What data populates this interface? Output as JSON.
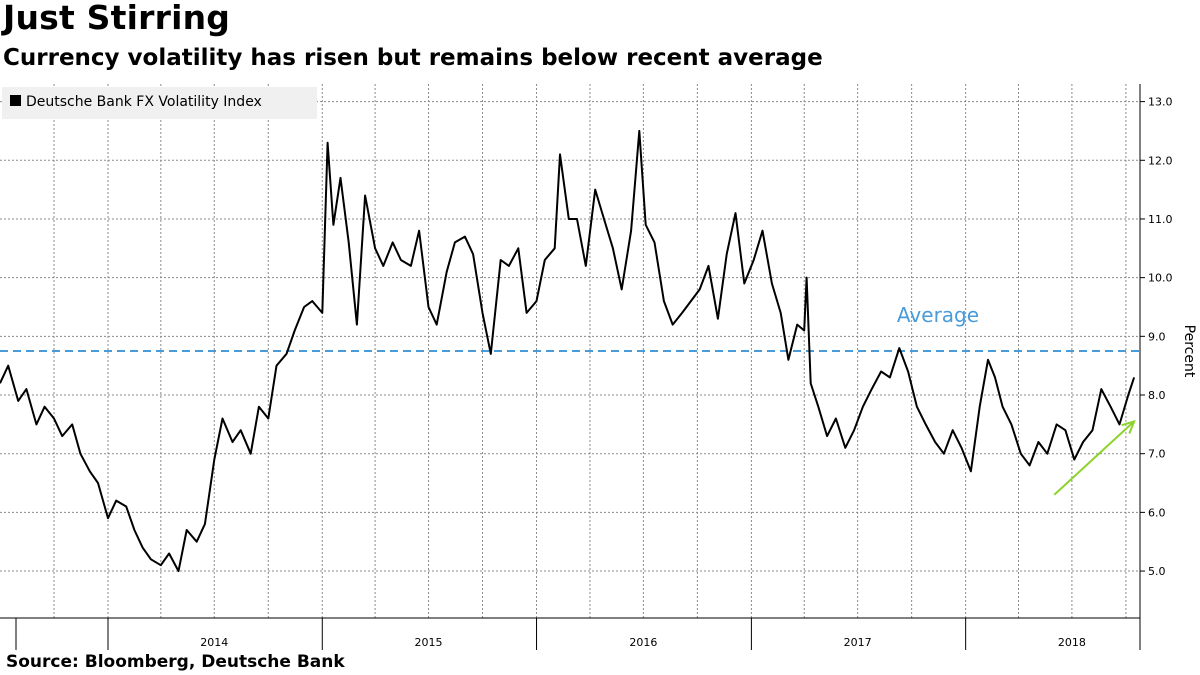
{
  "chart_data": {
    "type": "line",
    "title": "Just Stirring",
    "subtitle": "Currency volatility has risen but remains below recent average",
    "source": "Source: Bloomberg, Deutsche Bank",
    "ylabel": "Percent",
    "ylim": [
      4.2,
      13.3
    ],
    "yticks": [
      5.0,
      6.0,
      7.0,
      8.0,
      9.0,
      10.0,
      11.0,
      12.0,
      13.0
    ],
    "ytick_labels": [
      "5.0",
      "6.0",
      "7.0",
      "8.0",
      "9.0",
      "10.0",
      "11.0",
      "12.0",
      "13.0"
    ],
    "xlim": [
      "2013-07-01",
      "2018-10-25"
    ],
    "x_year_labels": [
      {
        "label": "2014",
        "x": "2014-07-01"
      },
      {
        "label": "2015",
        "x": "2015-07-01"
      },
      {
        "label": "2016",
        "x": "2016-07-01"
      },
      {
        "label": "2017",
        "x": "2017-07-01"
      },
      {
        "label": "2018",
        "x": "2018-07-01"
      }
    ],
    "grid": true,
    "legend_position": "top-left",
    "series": [
      {
        "name": "Deutsche Bank FX Volatility Index",
        "color": "#000000",
        "points": [
          [
            "2013-07-01",
            8.2
          ],
          [
            "2013-07-15",
            8.5
          ],
          [
            "2013-08-01",
            7.9
          ],
          [
            "2013-08-15",
            8.1
          ],
          [
            "2013-09-01",
            7.5
          ],
          [
            "2013-09-15",
            7.8
          ],
          [
            "2013-10-01",
            7.6
          ],
          [
            "2013-10-15",
            7.3
          ],
          [
            "2013-11-01",
            7.5
          ],
          [
            "2013-11-15",
            7.0
          ],
          [
            "2013-12-01",
            6.7
          ],
          [
            "2013-12-15",
            6.5
          ],
          [
            "2014-01-01",
            5.9
          ],
          [
            "2014-01-15",
            6.2
          ],
          [
            "2014-02-01",
            6.1
          ],
          [
            "2014-02-15",
            5.7
          ],
          [
            "2014-03-01",
            5.4
          ],
          [
            "2014-03-15",
            5.2
          ],
          [
            "2014-04-01",
            5.1
          ],
          [
            "2014-04-15",
            5.3
          ],
          [
            "2014-05-01",
            5.0
          ],
          [
            "2014-05-15",
            5.7
          ],
          [
            "2014-06-01",
            5.5
          ],
          [
            "2014-06-15",
            5.8
          ],
          [
            "2014-07-01",
            6.9
          ],
          [
            "2014-07-15",
            7.6
          ],
          [
            "2014-08-01",
            7.2
          ],
          [
            "2014-08-15",
            7.4
          ],
          [
            "2014-09-01",
            7.0
          ],
          [
            "2014-09-15",
            7.8
          ],
          [
            "2014-10-01",
            7.6
          ],
          [
            "2014-10-15",
            8.5
          ],
          [
            "2014-11-01",
            8.7
          ],
          [
            "2014-11-15",
            9.1
          ],
          [
            "2014-12-01",
            9.5
          ],
          [
            "2014-12-15",
            9.6
          ],
          [
            "2015-01-01",
            9.4
          ],
          [
            "2015-01-10",
            12.3
          ],
          [
            "2015-01-20",
            10.9
          ],
          [
            "2015-02-01",
            11.7
          ],
          [
            "2015-02-15",
            10.6
          ],
          [
            "2015-03-01",
            9.2
          ],
          [
            "2015-03-15",
            11.4
          ],
          [
            "2015-04-01",
            10.5
          ],
          [
            "2015-04-15",
            10.2
          ],
          [
            "2015-05-01",
            10.6
          ],
          [
            "2015-05-15",
            10.3
          ],
          [
            "2015-06-01",
            10.2
          ],
          [
            "2015-06-15",
            10.8
          ],
          [
            "2015-07-01",
            9.5
          ],
          [
            "2015-07-15",
            9.2
          ],
          [
            "2015-08-01",
            10.1
          ],
          [
            "2015-08-15",
            10.6
          ],
          [
            "2015-09-01",
            10.7
          ],
          [
            "2015-09-15",
            10.4
          ],
          [
            "2015-10-01",
            9.4
          ],
          [
            "2015-10-15",
            8.7
          ],
          [
            "2015-11-01",
            10.3
          ],
          [
            "2015-11-15",
            10.2
          ],
          [
            "2015-12-01",
            10.5
          ],
          [
            "2015-12-15",
            9.4
          ],
          [
            "2016-01-01",
            9.6
          ],
          [
            "2016-01-15",
            10.3
          ],
          [
            "2016-02-01",
            10.5
          ],
          [
            "2016-02-10",
            12.1
          ],
          [
            "2016-02-25",
            11.0
          ],
          [
            "2016-03-10",
            11.0
          ],
          [
            "2016-03-25",
            10.2
          ],
          [
            "2016-04-10",
            11.5
          ],
          [
            "2016-04-25",
            11.0
          ],
          [
            "2016-05-10",
            10.5
          ],
          [
            "2016-05-25",
            9.8
          ],
          [
            "2016-06-10",
            10.8
          ],
          [
            "2016-06-24",
            12.5
          ],
          [
            "2016-07-05",
            10.9
          ],
          [
            "2016-07-20",
            10.6
          ],
          [
            "2016-08-05",
            9.6
          ],
          [
            "2016-08-20",
            9.2
          ],
          [
            "2016-09-05",
            9.4
          ],
          [
            "2016-09-20",
            9.6
          ],
          [
            "2016-10-05",
            9.8
          ],
          [
            "2016-10-20",
            10.2
          ],
          [
            "2016-11-05",
            9.3
          ],
          [
            "2016-11-20",
            10.4
          ],
          [
            "2016-12-05",
            11.1
          ],
          [
            "2016-12-20",
            9.9
          ],
          [
            "2017-01-05",
            10.3
          ],
          [
            "2017-01-20",
            10.8
          ],
          [
            "2017-02-05",
            9.9
          ],
          [
            "2017-02-20",
            9.4
          ],
          [
            "2017-03-05",
            8.6
          ],
          [
            "2017-03-20",
            9.2
          ],
          [
            "2017-04-01",
            9.1
          ],
          [
            "2017-04-05",
            10.0
          ],
          [
            "2017-04-12",
            8.2
          ],
          [
            "2017-04-25",
            7.8
          ],
          [
            "2017-05-10",
            7.3
          ],
          [
            "2017-05-25",
            7.6
          ],
          [
            "2017-06-10",
            7.1
          ],
          [
            "2017-06-25",
            7.4
          ],
          [
            "2017-07-10",
            7.8
          ],
          [
            "2017-07-25",
            8.1
          ],
          [
            "2017-08-10",
            8.4
          ],
          [
            "2017-08-25",
            8.3
          ],
          [
            "2017-09-10",
            8.8
          ],
          [
            "2017-09-25",
            8.4
          ],
          [
            "2017-10-10",
            7.8
          ],
          [
            "2017-10-25",
            7.5
          ],
          [
            "2017-11-10",
            7.2
          ],
          [
            "2017-11-25",
            7.0
          ],
          [
            "2017-12-10",
            7.4
          ],
          [
            "2017-12-25",
            7.1
          ],
          [
            "2018-01-10",
            6.7
          ],
          [
            "2018-01-25",
            7.8
          ],
          [
            "2018-02-08",
            8.6
          ],
          [
            "2018-02-20",
            8.3
          ],
          [
            "2018-03-05",
            7.8
          ],
          [
            "2018-03-20",
            7.5
          ],
          [
            "2018-04-05",
            7.0
          ],
          [
            "2018-04-20",
            6.8
          ],
          [
            "2018-05-05",
            7.2
          ],
          [
            "2018-05-20",
            7.0
          ],
          [
            "2018-06-05",
            7.5
          ],
          [
            "2018-06-20",
            7.4
          ],
          [
            "2018-07-05",
            6.9
          ],
          [
            "2018-07-20",
            7.2
          ],
          [
            "2018-08-05",
            7.4
          ],
          [
            "2018-08-20",
            8.1
          ],
          [
            "2018-09-05",
            7.8
          ],
          [
            "2018-09-20",
            7.5
          ],
          [
            "2018-10-05",
            8.0
          ],
          [
            "2018-10-15",
            8.3
          ]
        ]
      }
    ],
    "annotations": [
      {
        "type": "hline",
        "label": "Average",
        "y": 8.75,
        "color": "#4a9bd9",
        "style": "dashed"
      },
      {
        "type": "arrow",
        "color": "#8ed32b",
        "from": [
          "2018-06-01",
          6.3
        ],
        "to": [
          "2018-10-15",
          7.55
        ]
      }
    ]
  }
}
